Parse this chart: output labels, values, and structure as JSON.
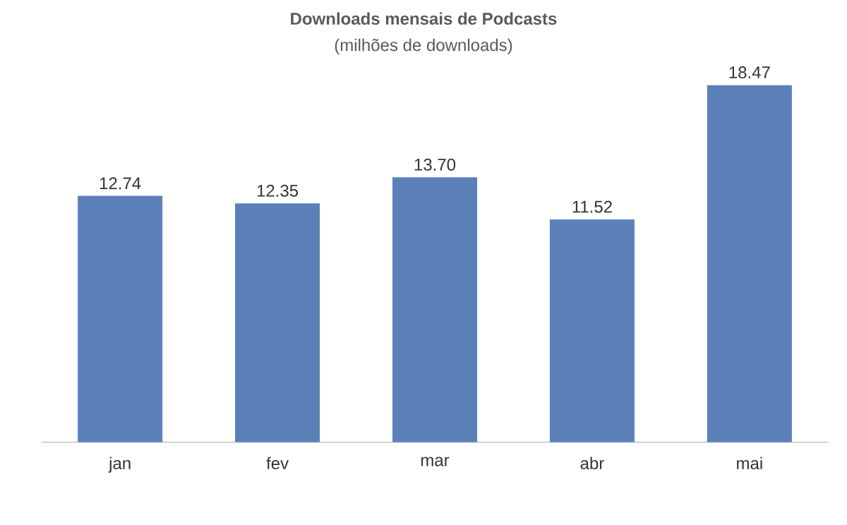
{
  "chart_data": {
    "type": "bar",
    "title": "Downloads mensais de Podcasts",
    "subtitle": "(milhões de downloads)",
    "categories": [
      "jan",
      "fev",
      "mar",
      "abr",
      "mai"
    ],
    "values": [
      12.74,
      12.35,
      13.7,
      11.52,
      18.47
    ],
    "value_labels": [
      "12.74",
      "12.35",
      "13.70",
      "11.52",
      "18.47"
    ],
    "color": "#5b80b9"
  }
}
